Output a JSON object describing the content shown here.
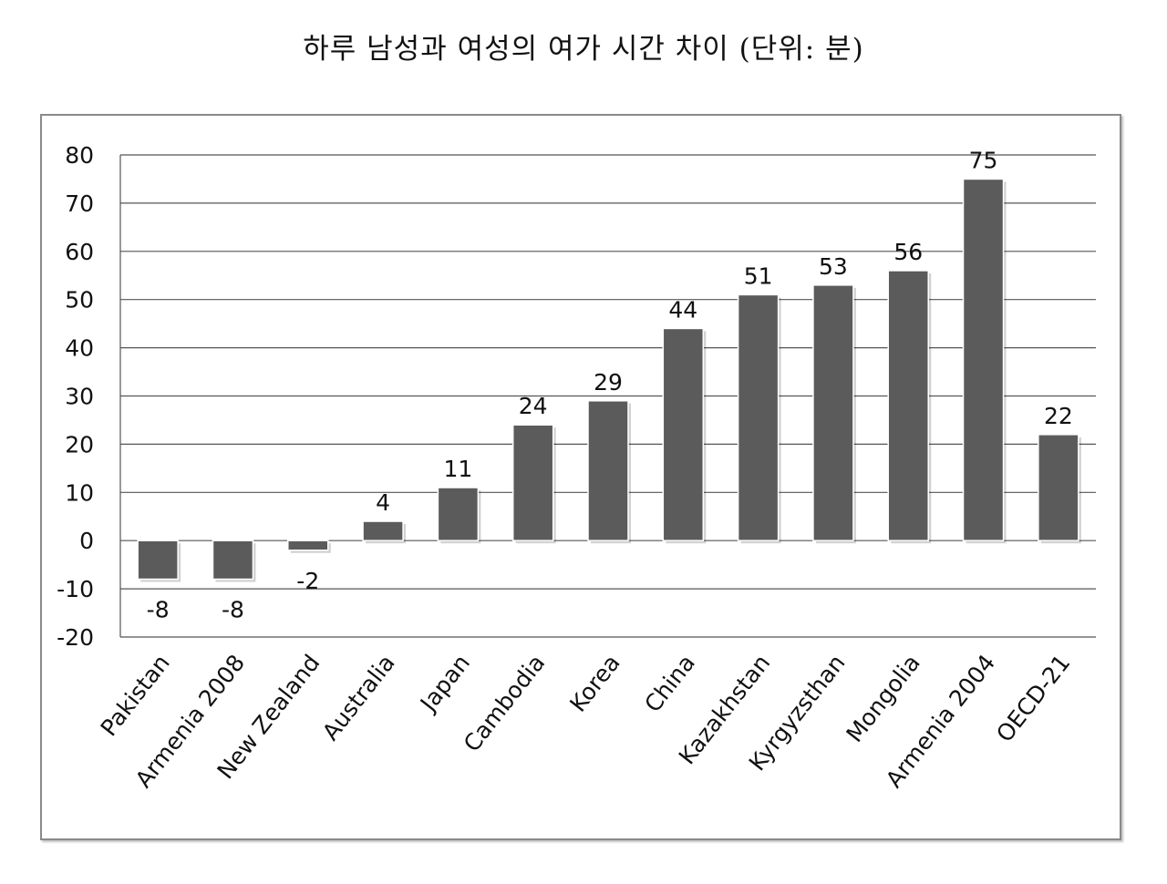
{
  "title": "하루 남성과 여성의 여가 시간 차이 (단위: 분)",
  "chart_data": {
    "type": "bar",
    "title": "하루 남성과 여성의 여가 시간 차이 (단위: 분)",
    "xlabel": "",
    "ylabel": "",
    "categories": [
      "Pakistan",
      "Armenia 2008",
      "New Zealand",
      "Australia",
      "Japan",
      "Cambodia",
      "Korea",
      "China",
      "Kazakhstan",
      "Kyrgyzsthan",
      "Mongolia",
      "Armenia 2004",
      "OECD-21"
    ],
    "values": [
      -8,
      -8,
      -2,
      4,
      11,
      24,
      29,
      44,
      51,
      53,
      56,
      75,
      22
    ],
    "data_labels": [
      "-8",
      "-8",
      "-2",
      "4",
      "11",
      "24",
      "29",
      "44",
      "51",
      "53",
      "56",
      "75",
      "22"
    ],
    "ylim": [
      -20,
      80
    ],
    "yticks": [
      80,
      70,
      60,
      50,
      40,
      30,
      20,
      10,
      0,
      -10,
      -20
    ],
    "grid": true,
    "legend": "none",
    "colors": {
      "bar": "#5b5b5b",
      "grid": "#555555",
      "frame": "#8a8a8a"
    }
  }
}
